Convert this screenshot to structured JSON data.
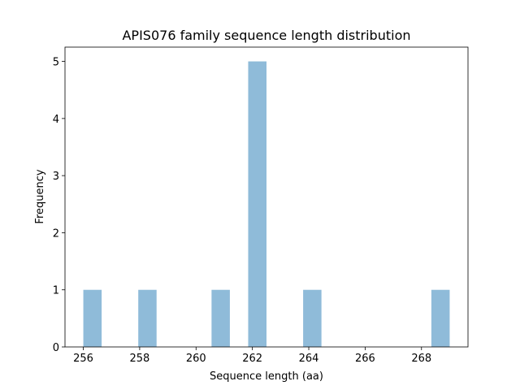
{
  "chart_data": {
    "type": "histogram",
    "title": "APIS076 family sequence length distribution",
    "x_label": "Sequence length (aa)",
    "y_label": "Frequency",
    "bins": [
      256,
      256.65,
      257.3,
      257.95,
      258.6,
      259.25,
      259.9,
      260.55,
      261.2,
      261.85,
      262.5,
      263.15,
      263.8,
      264.45,
      265.1,
      265.75,
      266.4,
      267.05,
      267.7,
      268.35,
      269
    ],
    "values": [
      1,
      0,
      0,
      1,
      0,
      0,
      0,
      1,
      0,
      5,
      0,
      0,
      1,
      0,
      0,
      0,
      0,
      0,
      0,
      1
    ],
    "color": "#8fbbd9",
    "xlim": [
      255.35,
      269.65
    ],
    "xticks": [
      256,
      258,
      260,
      262,
      264,
      266,
      268
    ],
    "ylim": [
      0,
      5.25
    ],
    "yticks": [
      0,
      1,
      2,
      3,
      4,
      5
    ]
  }
}
